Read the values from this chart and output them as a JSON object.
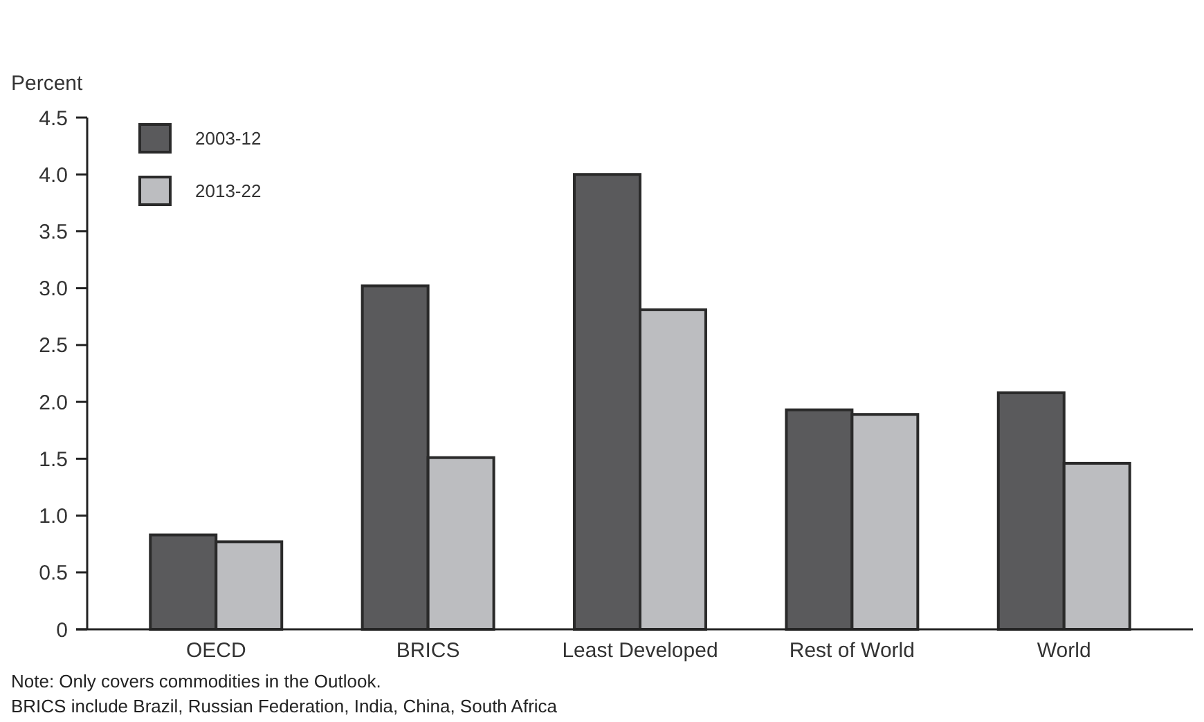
{
  "chart_data": {
    "type": "bar",
    "ylabel": "Percent",
    "categories": [
      "OECD",
      "BRICS",
      "Least Developed",
      "Rest of World",
      "World"
    ],
    "series": [
      {
        "name": "2003-12",
        "color": "#5a5a5c",
        "values": [
          0.83,
          3.02,
          4.0,
          1.93,
          2.08
        ]
      },
      {
        "name": "2013-22",
        "color": "#bcbdc0",
        "values": [
          0.77,
          1.51,
          2.81,
          1.89,
          1.46
        ]
      }
    ],
    "ylim": [
      0,
      4.5
    ],
    "yticks": [
      {
        "value": 0,
        "label": "0"
      },
      {
        "value": 0.5,
        "label": "0.5"
      },
      {
        "value": 1,
        "label": "1.0"
      },
      {
        "value": 1.5,
        "label": "1.5"
      },
      {
        "value": 2,
        "label": "2.0"
      },
      {
        "value": 2.5,
        "label": "2.5"
      },
      {
        "value": 3,
        "label": "3.0"
      },
      {
        "value": 3.5,
        "label": "3.5"
      },
      {
        "value": 4,
        "label": "4.0"
      },
      {
        "value": 4.5,
        "label": "4.5"
      }
    ],
    "legend": "top left",
    "grid": false,
    "annotations": [
      "Note: Only covers commodities in the Outlook.",
      "BRICS include Brazil, Russian Federation, India, China, South Africa"
    ]
  }
}
